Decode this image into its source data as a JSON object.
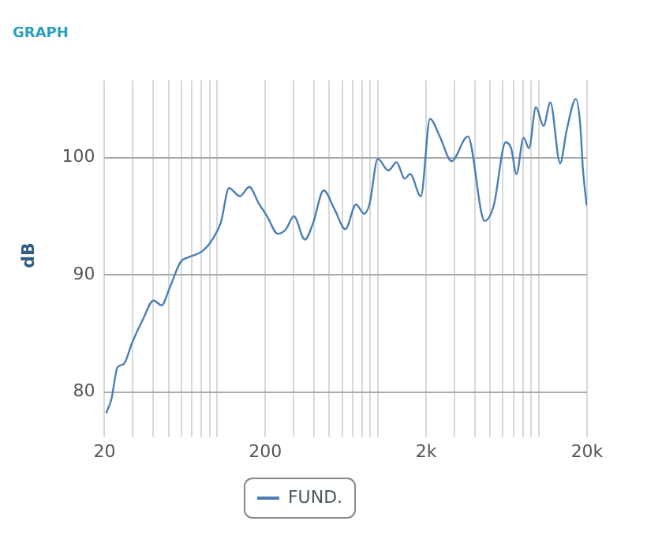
{
  "chart_data": {
    "type": "line",
    "title": "GRAPH",
    "ylabel": "dB",
    "log": "x",
    "grid": true,
    "legend": "bottom",
    "xlim": [
      20,
      20000
    ],
    "ylim": [
      76.7,
      106.6
    ],
    "xticks": [
      {
        "value": 20,
        "label": "20"
      },
      {
        "value": 30,
        "label": null
      },
      {
        "value": 40,
        "label": null
      },
      {
        "value": 50,
        "label": null
      },
      {
        "value": 60,
        "label": null
      },
      {
        "value": 70,
        "label": null
      },
      {
        "value": 80,
        "label": null
      },
      {
        "value": 90,
        "label": null
      },
      {
        "value": 100,
        "label": null
      },
      {
        "value": 200,
        "label": "200"
      },
      {
        "value": 300,
        "label": null
      },
      {
        "value": 400,
        "label": null
      },
      {
        "value": 500,
        "label": null
      },
      {
        "value": 600,
        "label": null
      },
      {
        "value": 700,
        "label": null
      },
      {
        "value": 800,
        "label": null
      },
      {
        "value": 900,
        "label": null
      },
      {
        "value": 1000,
        "label": null
      },
      {
        "value": 2000,
        "label": "2k"
      },
      {
        "value": 3000,
        "label": null
      },
      {
        "value": 4000,
        "label": null
      },
      {
        "value": 5000,
        "label": null
      },
      {
        "value": 6000,
        "label": null
      },
      {
        "value": 7000,
        "label": null
      },
      {
        "value": 8000,
        "label": null
      },
      {
        "value": 9000,
        "label": null
      },
      {
        "value": 10000,
        "label": null
      },
      {
        "value": 20000,
        "label": "20k"
      }
    ],
    "yticks": [
      80,
      90,
      100
    ],
    "x": [
      20.5,
      22.1,
      24.1,
      26.4,
      29.7,
      34.7,
      40.4,
      45.3,
      50.9,
      59.5,
      66.8,
      80.9,
      94.6,
      106,
      119,
      139,
      159,
      182,
      205,
      239,
      269,
      301,
      352,
      396,
      461,
      538,
      629,
      733,
      823,
      891,
      1000,
      1165,
      1309,
      1469,
      1589,
      1853,
      2113,
      2430,
      2877,
      3630,
      4615,
      5260,
      6240,
      6745,
      7280,
      8070,
      8710,
      9620,
      10720,
      11830,
      13610,
      14930,
      17060,
      18150,
      18840,
      19900
    ],
    "series": [
      {
        "name": "FUND.",
        "color": "#4a7fb5",
        "values": [
          78.2,
          79.4,
          82.1,
          82.4,
          84.2,
          86.2,
          87.8,
          87.4,
          88.9,
          91.1,
          91.5,
          92.0,
          93.1,
          94.5,
          97.4,
          96.7,
          97.5,
          96.1,
          95.0,
          93.5,
          93.9,
          95.0,
          93.0,
          94.4,
          97.2,
          95.6,
          93.9,
          96.0,
          95.2,
          96.1,
          99.9,
          98.9,
          99.6,
          98.2,
          98.6,
          96.7,
          103.3,
          101.8,
          99.7,
          101.8,
          94.6,
          95.9,
          101.3,
          100.8,
          98.6,
          101.7,
          100.8,
          104.3,
          102.7,
          104.7,
          99.5,
          102.3,
          105.0,
          102.8,
          99.1,
          95.9
        ]
      }
    ]
  }
}
